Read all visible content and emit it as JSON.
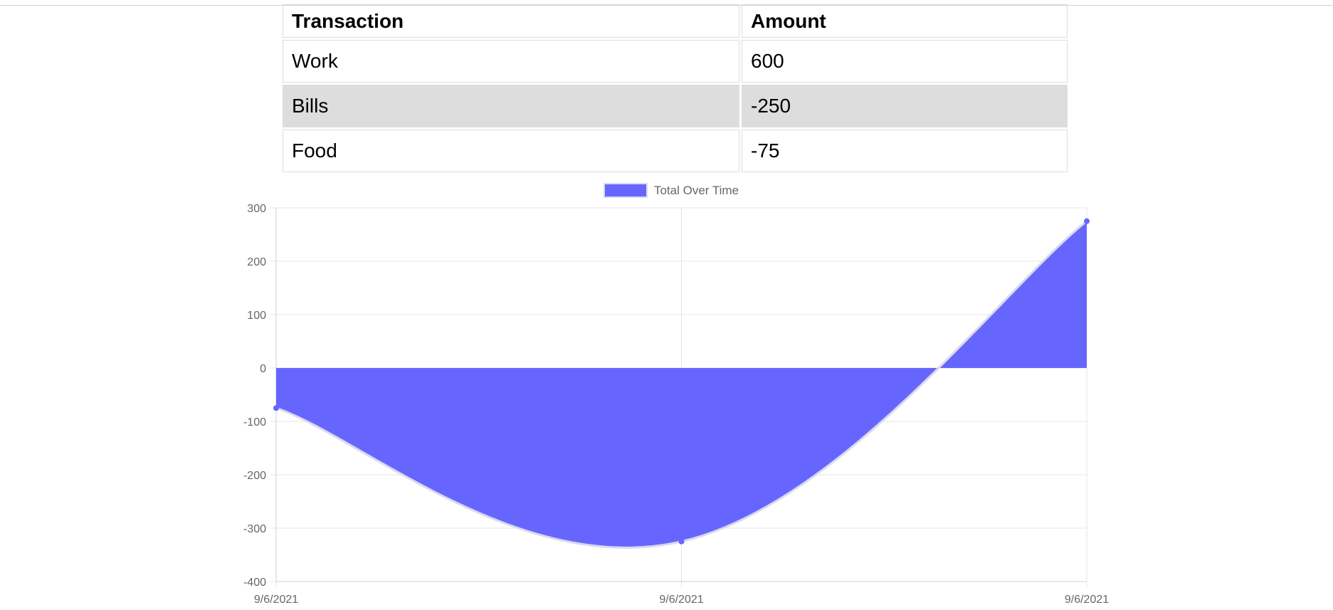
{
  "table": {
    "headers": [
      "Transaction",
      "Amount"
    ],
    "rows": [
      {
        "name": "Work",
        "amount": "600"
      },
      {
        "name": "Bills",
        "amount": "-250"
      },
      {
        "name": "Food",
        "amount": "-75"
      }
    ]
  },
  "chart_data": {
    "type": "area",
    "title": "",
    "legend": {
      "label": "Total Over Time",
      "placement": "top-center"
    },
    "x": [
      "9/6/2021",
      "9/6/2021",
      "9/6/2021"
    ],
    "series": [
      {
        "name": "Total Over Time",
        "values": [
          -75,
          -325,
          275
        ]
      }
    ],
    "ylim": [
      -400,
      300
    ],
    "y_ticks": [
      300,
      200,
      100,
      0,
      -100,
      -200,
      -300,
      -400
    ],
    "grid": true,
    "colors": {
      "fill": "#6666ff",
      "line": "#d9d9ef",
      "point": "#6666ff",
      "grid": "#e5e5e5",
      "tick_text": "#666666"
    }
  }
}
